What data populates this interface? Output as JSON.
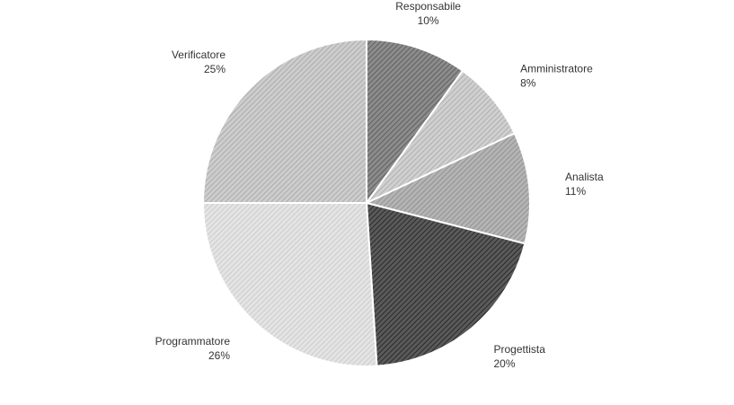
{
  "chart_data": {
    "type": "pie",
    "title": "",
    "slices": [
      {
        "name": "Responsabile",
        "value": 10,
        "label": "10%",
        "color": "#8c8c8c",
        "hatch": "#555555",
        "text_color": "#333333"
      },
      {
        "name": "Amministratore",
        "value": 8,
        "label": "8%",
        "color": "#d0d0d0",
        "hatch": "#a8a8a8",
        "text_color": "#333333"
      },
      {
        "name": "Analista",
        "value": 11,
        "label": "11%",
        "color": "#b4b4b4",
        "hatch": "#8a8a8a",
        "text_color": "#333333"
      },
      {
        "name": "Progettista",
        "value": 20,
        "label": "20%",
        "color": "#5a5a5a",
        "hatch": "#1e1e1e",
        "text_color": "#333333"
      },
      {
        "name": "Programmatore",
        "value": 26,
        "label": "26%",
        "color": "#e4e4e4",
        "hatch": "#c6c6c6",
        "text_color": "#333333"
      },
      {
        "name": "Verificatore",
        "value": 25,
        "label": "25%",
        "color": "#cdcdcd",
        "hatch": "#a4a4a4",
        "text_color": "#333333"
      }
    ],
    "start_angle_deg": 0,
    "direction": "clockwise",
    "legend": "none",
    "data_labels": "outside"
  }
}
